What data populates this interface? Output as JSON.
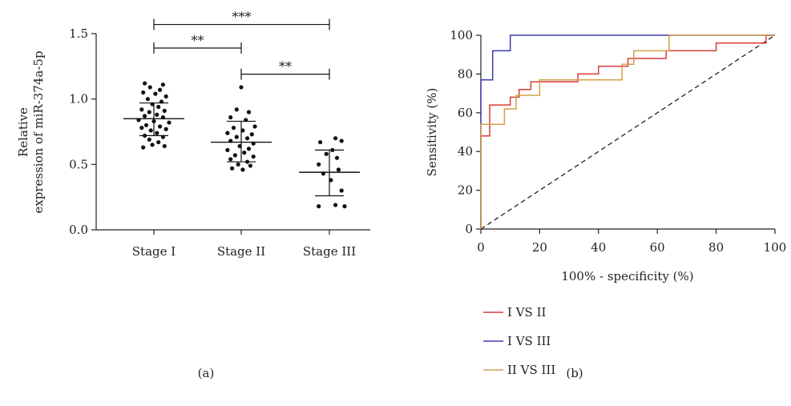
{
  "chart_data": [
    {
      "type": "scatter",
      "panel_label": "(a)",
      "ylabel_lines": [
        "Relative",
        "expression of miR-374a-5p"
      ],
      "ylim": [
        0,
        1.5
      ],
      "yticks": [
        "0.0",
        "0.5",
        "1.0",
        "1.5"
      ],
      "categories": [
        "Stage I",
        "Stage II",
        "Stage III"
      ],
      "groups": [
        {
          "name": "Stage I",
          "mean": 0.85,
          "sd_low": 0.72,
          "sd_high": 0.97,
          "points": [
            [
              -0.12,
              1.12
            ],
            [
              0.12,
              1.11
            ],
            [
              -0.05,
              1.09
            ],
            [
              0.08,
              1.07
            ],
            [
              -0.14,
              1.05
            ],
            [
              0.02,
              1.04
            ],
            [
              0.16,
              1.02
            ],
            [
              -0.08,
              1.0
            ],
            [
              0.1,
              0.98
            ],
            [
              -0.02,
              0.96
            ],
            [
              0.06,
              0.94
            ],
            [
              -0.16,
              0.92
            ],
            [
              0.14,
              0.91
            ],
            [
              -0.06,
              0.9
            ],
            [
              0.04,
              0.88
            ],
            [
              -0.12,
              0.87
            ],
            [
              0.12,
              0.86
            ],
            [
              -0.2,
              0.84
            ],
            [
              0.0,
              0.83
            ],
            [
              0.2,
              0.82
            ],
            [
              -0.1,
              0.8
            ],
            [
              0.08,
              0.79
            ],
            [
              -0.16,
              0.78
            ],
            [
              0.16,
              0.77
            ],
            [
              -0.04,
              0.76
            ],
            [
              0.04,
              0.74
            ],
            [
              -0.12,
              0.72
            ],
            [
              0.12,
              0.71
            ],
            [
              -0.06,
              0.69
            ],
            [
              0.06,
              0.67
            ],
            [
              -0.02,
              0.65
            ],
            [
              0.14,
              0.64
            ],
            [
              -0.14,
              0.63
            ]
          ]
        },
        {
          "name": "Stage II",
          "mean": 0.67,
          "sd_low": 0.52,
          "sd_high": 0.83,
          "points": [
            [
              0.0,
              1.09
            ],
            [
              -0.06,
              0.92
            ],
            [
              0.1,
              0.9
            ],
            [
              -0.14,
              0.86
            ],
            [
              0.06,
              0.84
            ],
            [
              0.18,
              0.79
            ],
            [
              -0.1,
              0.78
            ],
            [
              0.02,
              0.76
            ],
            [
              -0.18,
              0.74
            ],
            [
              0.14,
              0.73
            ],
            [
              -0.06,
              0.71
            ],
            [
              0.08,
              0.7
            ],
            [
              -0.14,
              0.68
            ],
            [
              0.16,
              0.66
            ],
            [
              -0.02,
              0.64
            ],
            [
              0.1,
              0.62
            ],
            [
              -0.18,
              0.61
            ],
            [
              0.04,
              0.59
            ],
            [
              -0.08,
              0.57
            ],
            [
              0.16,
              0.56
            ],
            [
              -0.14,
              0.54
            ],
            [
              0.08,
              0.52
            ],
            [
              -0.04,
              0.5
            ],
            [
              0.12,
              0.49
            ],
            [
              -0.12,
              0.47
            ],
            [
              0.02,
              0.46
            ]
          ]
        },
        {
          "name": "Stage III",
          "mean": 0.44,
          "sd_low": 0.26,
          "sd_high": 0.61,
          "points": [
            [
              0.08,
              0.7
            ],
            [
              0.16,
              0.68
            ],
            [
              -0.12,
              0.67
            ],
            [
              0.04,
              0.61
            ],
            [
              -0.04,
              0.58
            ],
            [
              0.1,
              0.55
            ],
            [
              -0.14,
              0.5
            ],
            [
              0.12,
              0.46
            ],
            [
              -0.08,
              0.43
            ],
            [
              0.02,
              0.38
            ],
            [
              0.16,
              0.3
            ],
            [
              0.08,
              0.19
            ],
            [
              -0.14,
              0.18
            ],
            [
              0.2,
              0.18
            ]
          ]
        }
      ],
      "significance": [
        {
          "from": 0,
          "to": 2,
          "label": "***",
          "y": 1.57
        },
        {
          "from": 0,
          "to": 1,
          "label": "**",
          "y": 1.39
        },
        {
          "from": 1,
          "to": 2,
          "label": "**",
          "y": 1.19
        }
      ]
    },
    {
      "type": "line",
      "panel_label": "(b)",
      "xlabel": "100% - specificity (%)",
      "ylabel": "Sensitivity (%)",
      "xlim": [
        0,
        100
      ],
      "ylim": [
        0,
        100
      ],
      "xticks": [
        "0",
        "20",
        "40",
        "60",
        "80",
        "100"
      ],
      "yticks": [
        "0",
        "20",
        "40",
        "60",
        "80",
        "100"
      ],
      "legend_position": "bottom",
      "diagonal": true,
      "series": [
        {
          "name": "I VS II",
          "color": "#d93b3b",
          "points": [
            [
              0,
              0
            ],
            [
              0,
              48
            ],
            [
              3,
              48
            ],
            [
              3,
              64
            ],
            [
              10,
              64
            ],
            [
              10,
              68
            ],
            [
              13,
              68
            ],
            [
              13,
              72
            ],
            [
              17,
              72
            ],
            [
              17,
              76
            ],
            [
              33,
              76
            ],
            [
              33,
              80
            ],
            [
              40,
              80
            ],
            [
              40,
              84
            ],
            [
              50,
              84
            ],
            [
              50,
              88
            ],
            [
              63,
              88
            ],
            [
              63,
              92
            ],
            [
              80,
              92
            ],
            [
              80,
              96
            ],
            [
              97,
              96
            ],
            [
              97,
              100
            ],
            [
              100,
              100
            ]
          ]
        },
        {
          "name": "I VS III",
          "color": "#3b3bb0",
          "points": [
            [
              0,
              0
            ],
            [
              0,
              77
            ],
            [
              4,
              77
            ],
            [
              4,
              92
            ],
            [
              10,
              92
            ],
            [
              10,
              100
            ],
            [
              100,
              100
            ]
          ]
        },
        {
          "name": "II VS III",
          "color": "#d4a04a",
          "points": [
            [
              0,
              0
            ],
            [
              0,
              54
            ],
            [
              8,
              54
            ],
            [
              8,
              62
            ],
            [
              12,
              62
            ],
            [
              12,
              69
            ],
            [
              20,
              69
            ],
            [
              20,
              77
            ],
            [
              48,
              77
            ],
            [
              48,
              85
            ],
            [
              52,
              85
            ],
            [
              52,
              92
            ],
            [
              64,
              92
            ],
            [
              64,
              100
            ],
            [
              100,
              100
            ]
          ]
        }
      ]
    }
  ]
}
